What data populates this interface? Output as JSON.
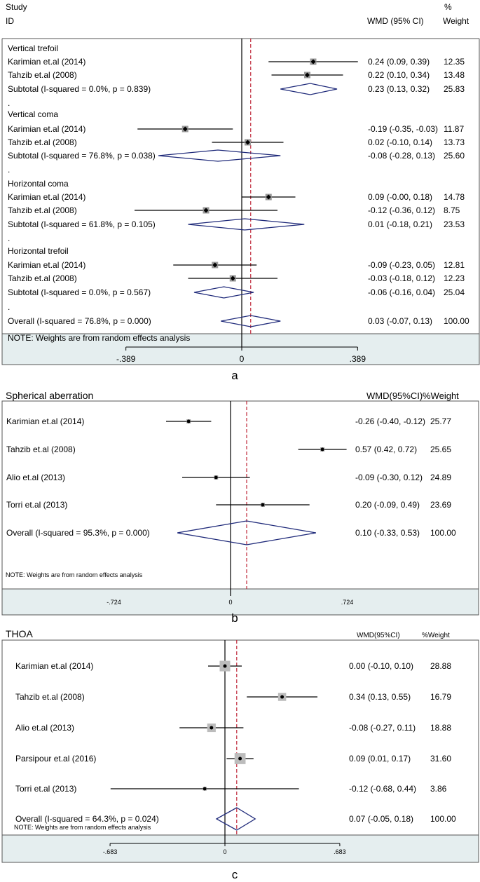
{
  "chart_data": [
    {
      "type": "forest",
      "panel_label": "a",
      "header": {
        "study": "Study",
        "id": "ID",
        "ci": "WMD (95% CI)",
        "pct": "%",
        "weight": "Weight"
      },
      "note": "NOTE: Weights are from random effects analysis",
      "xlim": [
        -0.389,
        0.389
      ],
      "ticks": [
        {
          "v": -0.389,
          "label": "-.389"
        },
        {
          "v": 0,
          "label": "0"
        },
        {
          "v": 0.389,
          "label": ".389"
        }
      ],
      "null_line": 0,
      "overall_line": 0.03,
      "rows": [
        {
          "kind": "group",
          "label": "Vertical trefoil"
        },
        {
          "kind": "study",
          "label": "Karimian et.al (2014)",
          "est": 0.24,
          "lo": 0.09,
          "hi": 0.39,
          "ci": "0.24 (0.09, 0.39)",
          "weight": "12.35"
        },
        {
          "kind": "study",
          "label": "Tahzib et.al (2008)",
          "est": 0.22,
          "lo": 0.1,
          "hi": 0.34,
          "ci": "0.22 (0.10, 0.34)",
          "weight": "13.48"
        },
        {
          "kind": "subtotal",
          "label": "Subtotal  (I-squared = 0.0%, p = 0.839)",
          "est": 0.23,
          "lo": 0.13,
          "hi": 0.32,
          "ci": "0.23 (0.13, 0.32)",
          "weight": "25.83"
        },
        {
          "kind": "dot",
          "label": "."
        },
        {
          "kind": "group",
          "label": "Vertical coma"
        },
        {
          "kind": "study",
          "label": "Karimian et.al (2014)",
          "est": -0.19,
          "lo": -0.35,
          "hi": -0.03,
          "ci": "-0.19 (-0.35, -0.03)",
          "weight": "11.87"
        },
        {
          "kind": "study",
          "label": "Tahzib et.al (2008)",
          "est": 0.02,
          "lo": -0.1,
          "hi": 0.14,
          "ci": "0.02 (-0.10, 0.14)",
          "weight": "13.73"
        },
        {
          "kind": "subtotal",
          "label": "Subtotal  (I-squared = 76.8%, p = 0.038)",
          "est": -0.08,
          "lo": -0.28,
          "hi": 0.13,
          "ci": "-0.08 (-0.28, 0.13)",
          "weight": "25.60"
        },
        {
          "kind": "dot",
          "label": "."
        },
        {
          "kind": "group",
          "label": "Horizontal coma"
        },
        {
          "kind": "study",
          "label": "Karimian et.al (2014)",
          "est": 0.09,
          "lo": -0.0,
          "hi": 0.18,
          "ci": "0.09 (-0.00, 0.18)",
          "weight": "14.78"
        },
        {
          "kind": "study",
          "label": "Tahzib et.al (2008)",
          "est": -0.12,
          "lo": -0.36,
          "hi": 0.12,
          "ci": "-0.12 (-0.36, 0.12)",
          "weight": "8.75"
        },
        {
          "kind": "subtotal",
          "label": "Subtotal  (I-squared = 61.8%, p = 0.105)",
          "est": 0.01,
          "lo": -0.18,
          "hi": 0.21,
          "ci": "0.01 (-0.18, 0.21)",
          "weight": "23.53"
        },
        {
          "kind": "dot",
          "label": "."
        },
        {
          "kind": "group",
          "label": "Horizontal trefoil"
        },
        {
          "kind": "study",
          "label": "Karimian et.al (2014)",
          "est": -0.09,
          "lo": -0.23,
          "hi": 0.05,
          "ci": "-0.09 (-0.23, 0.05)",
          "weight": "12.81"
        },
        {
          "kind": "study",
          "label": "Tahzib et.al (2008)",
          "est": -0.03,
          "lo": -0.18,
          "hi": 0.12,
          "ci": "-0.03 (-0.18, 0.12)",
          "weight": "12.23"
        },
        {
          "kind": "subtotal",
          "label": "Subtotal  (I-squared = 0.0%, p = 0.567)",
          "est": -0.06,
          "lo": -0.16,
          "hi": 0.04,
          "ci": "-0.06 (-0.16, 0.04)",
          "weight": "25.04"
        },
        {
          "kind": "dot",
          "label": "."
        },
        {
          "kind": "overall",
          "label": "Overall  (I-squared = 76.8%, p = 0.000)",
          "est": 0.03,
          "lo": -0.07,
          "hi": 0.13,
          "ci": "0.03 (-0.07, 0.13)",
          "weight": "100.00"
        }
      ]
    },
    {
      "type": "forest",
      "panel_label": "b",
      "title": "Spherical aberration",
      "header": {
        "ci": "WMD(95%CI)",
        "weight": "%Weight"
      },
      "note": "NOTE: Weights are from random effects analysis",
      "xlim": [
        -0.724,
        0.724
      ],
      "ticks": [
        {
          "v": -0.724,
          "label": "-.724"
        },
        {
          "v": 0,
          "label": "0"
        },
        {
          "v": 0.724,
          "label": ".724"
        }
      ],
      "null_line": 0,
      "overall_line": 0.1,
      "rows": [
        {
          "kind": "study",
          "label": "Karimian et.al (2014)",
          "est": -0.26,
          "lo": -0.4,
          "hi": -0.12,
          "ci": "-0.26 (-0.40, -0.12)",
          "weight": "25.77"
        },
        {
          "kind": "study",
          "label": "Tahzib et.al (2008)",
          "est": 0.57,
          "lo": 0.42,
          "hi": 0.72,
          "ci": "0.57 (0.42, 0.72)",
          "weight": "25.65"
        },
        {
          "kind": "study",
          "label": "Alio et.al (2013)",
          "est": -0.09,
          "lo": -0.3,
          "hi": 0.12,
          "ci": "-0.09 (-0.30, 0.12)",
          "weight": "24.89"
        },
        {
          "kind": "study",
          "label": "Torri et.al (2013)",
          "est": 0.2,
          "lo": -0.09,
          "hi": 0.49,
          "ci": "0.20 (-0.09, 0.49)",
          "weight": "23.69"
        },
        {
          "kind": "overall",
          "label": "Overall  (I-squared = 95.3%, p = 0.000)",
          "est": 0.1,
          "lo": -0.33,
          "hi": 0.53,
          "ci": "0.10 (-0.33, 0.53)",
          "weight": "100.00"
        }
      ]
    },
    {
      "type": "forest",
      "panel_label": "c",
      "title": "THOA",
      "header": {
        "ci": "WMD(95%CI)",
        "weight": "%Weight"
      },
      "note": "NOTE: Weights are from random effects analysis",
      "xlim": [
        -0.683,
        0.683
      ],
      "ticks": [
        {
          "v": -0.683,
          "label": "-.683"
        },
        {
          "v": 0,
          "label": "0"
        },
        {
          "v": 0.683,
          "label": ".683"
        }
      ],
      "null_line": 0,
      "overall_line": 0.07,
      "rows": [
        {
          "kind": "study",
          "label": "Karimian et.al (2014)",
          "est": 0.0,
          "lo": -0.1,
          "hi": 0.1,
          "ci": "0.00 (-0.10, 0.10)",
          "weight": "28.88",
          "w": 28.88
        },
        {
          "kind": "study",
          "label": "Tahzib et.al (2008)",
          "est": 0.34,
          "lo": 0.13,
          "hi": 0.55,
          "ci": "0.34 (0.13, 0.55)",
          "weight": "16.79",
          "w": 16.79
        },
        {
          "kind": "study",
          "label": "Alio et.al (2013)",
          "est": -0.08,
          "lo": -0.27,
          "hi": 0.11,
          "ci": "-0.08 (-0.27, 0.11)",
          "weight": "18.88",
          "w": 18.88
        },
        {
          "kind": "study",
          "label": "Parsipour et.al (2016)",
          "est": 0.09,
          "lo": 0.01,
          "hi": 0.17,
          "ci": "0.09 (0.01, 0.17)",
          "weight": "31.60",
          "w": 31.6
        },
        {
          "kind": "study",
          "label": "Torri et.al (2013)",
          "est": -0.12,
          "lo": -0.68,
          "hi": 0.44,
          "ci": "-0.12 (-0.68, 0.44)",
          "weight": "3.86",
          "w": 3.86
        },
        {
          "kind": "overall",
          "label": "Overall  (I-squared = 64.3%, p = 0.024)",
          "est": 0.07,
          "lo": -0.05,
          "hi": 0.18,
          "ci": "0.07 (-0.05, 0.18)",
          "weight": "100.00"
        }
      ]
    }
  ]
}
